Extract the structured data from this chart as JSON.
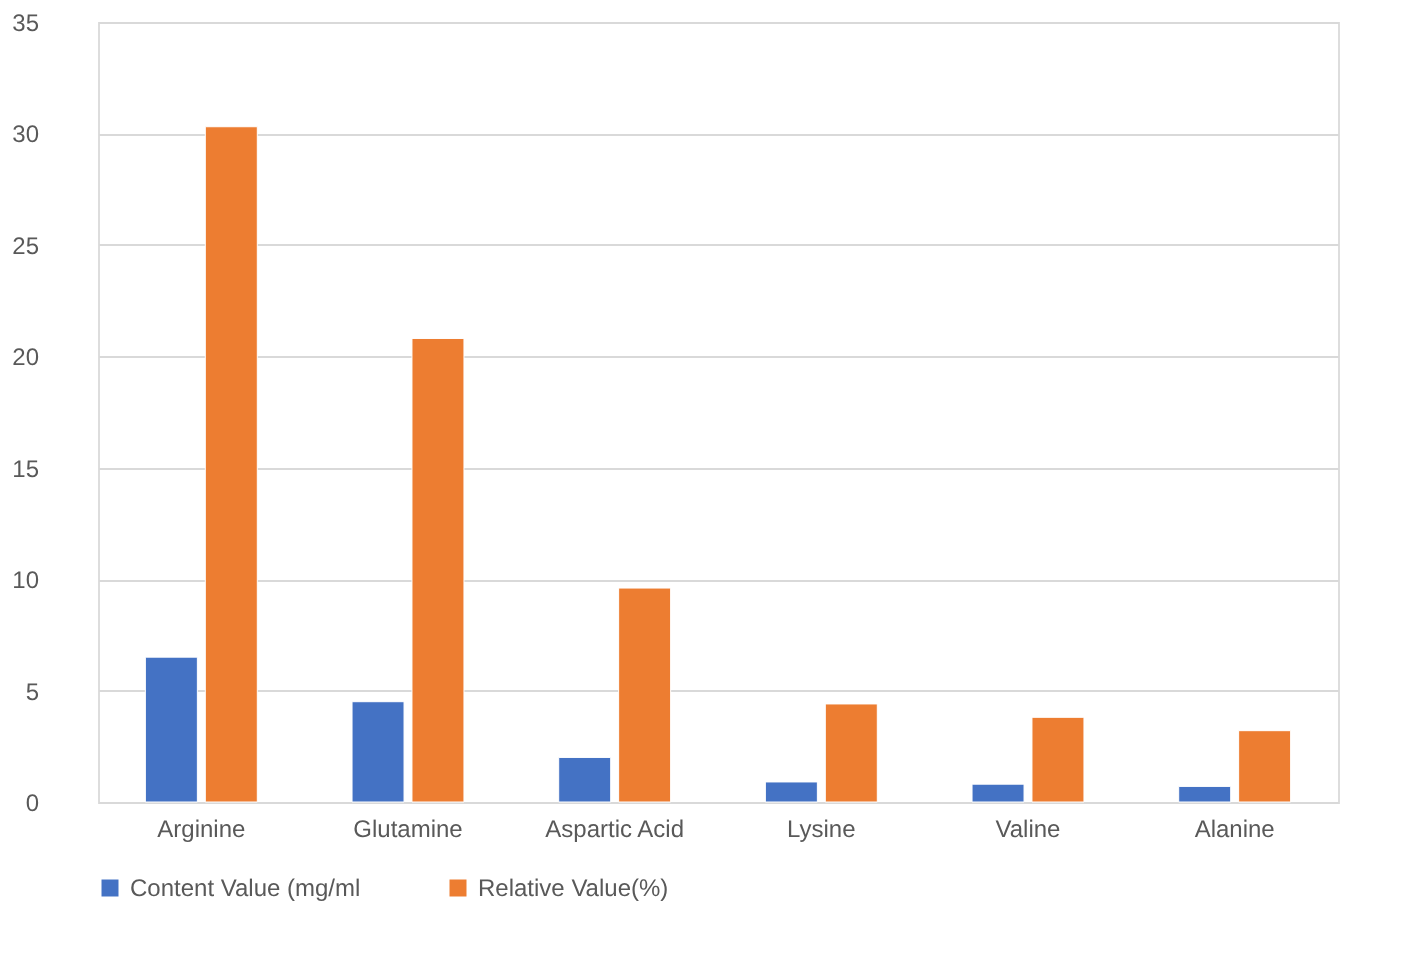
{
  "chart_data": {
    "type": "bar",
    "categories": [
      "Arginine",
      "Glutamine",
      "Aspartic Acid",
      "Lysine",
      "Valine",
      "Alanine"
    ],
    "series": [
      {
        "name": "Content Value (mg/ml",
        "color": "#4472c4",
        "values": [
          6.5,
          4.5,
          2.0,
          0.9,
          0.8,
          0.7
        ]
      },
      {
        "name": "Relative Value(%)",
        "color": "#ed7d31",
        "values": [
          30.3,
          20.8,
          9.6,
          4.4,
          3.8,
          3.2
        ]
      }
    ],
    "ylim": [
      0,
      35
    ],
    "yticks": [
      0,
      5,
      10,
      15,
      20,
      25,
      30,
      35
    ],
    "grid": "y",
    "legend": "bottom"
  }
}
